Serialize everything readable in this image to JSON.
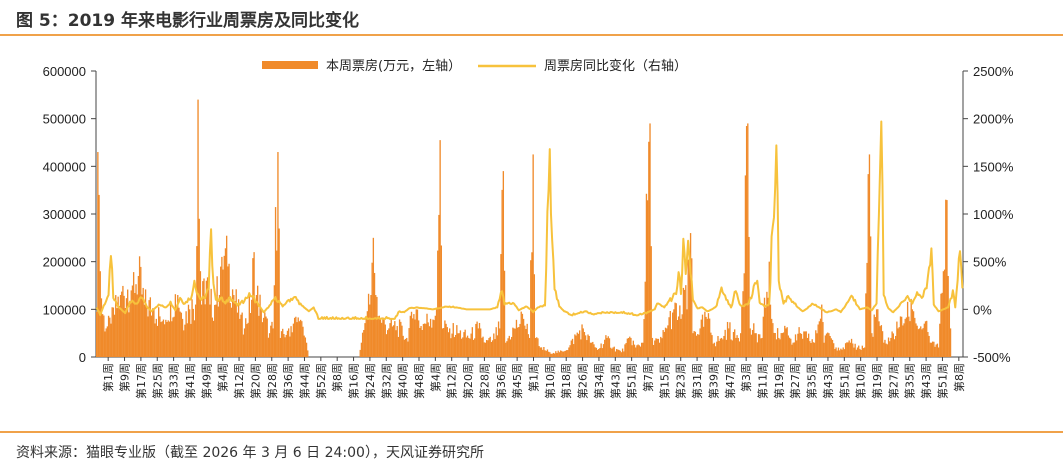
{
  "header": {
    "title": "图 5：2019 年来电影行业周票房及同比变化"
  },
  "footer": {
    "source": "资料来源：猫眼专业版（截至 2026 年 3 月 6 日 24:00），天风证券研究所"
  },
  "colors": {
    "bar": "#f08a2a",
    "line": "#f7c23c",
    "rule": "#f0a24a",
    "axis": "#444444"
  },
  "chart_data": {
    "type": "bar",
    "legend_position": "top",
    "y_left": {
      "min": 0,
      "max": 600000,
      "ticks": [
        "0",
        "100000",
        "200000",
        "300000",
        "400000",
        "500000",
        "600000"
      ]
    },
    "y_right": {
      "min": -500,
      "max": 2500,
      "ticks": [
        "-500%",
        "0%",
        "500%",
        "1000%",
        "1500%",
        "2000%",
        "2500%"
      ]
    },
    "x_tick_labels": [
      "第1周",
      "第9周",
      "第17周",
      "第25周",
      "第33周",
      "第41周",
      "第49周",
      "第4周",
      "第12周",
      "第20周",
      "第28周",
      "第36周",
      "第44周",
      "第52周",
      "第8周",
      "第16周",
      "第24周",
      "第32周",
      "第40周",
      "第48周",
      "第4周",
      "第12周",
      "第20周",
      "第28周",
      "第36周",
      "第45周",
      "第1周",
      "第10周",
      "第18周",
      "第26周",
      "第34周",
      "第43周",
      "第51周",
      "第7周",
      "第15周",
      "第23周",
      "第31周",
      "第39周",
      "第47周",
      "第3周",
      "第11周",
      "第19周",
      "第27周",
      "第35周",
      "第43周",
      "第51周",
      "第10周",
      "第19周",
      "第27周",
      "第35周",
      "第43周",
      "第51周",
      "第8周"
    ],
    "series": [
      {
        "name": "本周票房(万元，左轴）",
        "type": "bar",
        "axis": "left",
        "keypoints": [
          [
            0,
            95000
          ],
          [
            1,
            430000
          ],
          [
            2,
            340000
          ],
          [
            3,
            180000
          ],
          [
            5,
            90000
          ],
          [
            8,
            60000
          ],
          [
            12,
            70000
          ],
          [
            20,
            130000
          ],
          [
            30,
            150000
          ],
          [
            35,
            170000
          ],
          [
            40,
            110000
          ],
          [
            48,
            100000
          ],
          [
            55,
            75000
          ],
          [
            62,
            110000
          ],
          [
            68,
            130000
          ],
          [
            72,
            80000
          ],
          [
            78,
            100000
          ],
          [
            83,
            110000
          ],
          [
            85,
            540000
          ],
          [
            86,
            290000
          ],
          [
            88,
            110000
          ],
          [
            92,
            160000
          ],
          [
            95,
            110000
          ],
          [
            100,
            110000
          ],
          [
            105,
            210000
          ],
          [
            110,
            190000
          ],
          [
            115,
            130000
          ],
          [
            120,
            80000
          ],
          [
            124,
            60000
          ],
          [
            130,
            120000
          ],
          [
            132,
            220000
          ],
          [
            134,
            130000
          ],
          [
            138,
            100000
          ],
          [
            145,
            50000
          ],
          [
            148,
            60000
          ],
          [
            152,
            430000
          ],
          [
            154,
            40000
          ],
          [
            160,
            55000
          ],
          [
            165,
            70000
          ],
          [
            170,
            75000
          ],
          [
            176,
            30000
          ],
          [
            178,
            0
          ],
          [
            220,
            0
          ],
          [
            222,
            30000
          ],
          [
            226,
            85000
          ],
          [
            230,
            130000
          ],
          [
            232,
            250000
          ],
          [
            234,
            130000
          ],
          [
            238,
            80000
          ],
          [
            245,
            60000
          ],
          [
            252,
            65000
          ],
          [
            260,
            40000
          ],
          [
            266,
            90000
          ],
          [
            268,
            100000
          ],
          [
            272,
            65000
          ],
          [
            280,
            80000
          ],
          [
            285,
            100000
          ],
          [
            288,
            455000
          ],
          [
            290,
            60000
          ],
          [
            296,
            60000
          ],
          [
            304,
            50000
          ],
          [
            312,
            40000
          ],
          [
            320,
            60000
          ],
          [
            326,
            30000
          ],
          [
            332,
            35000
          ],
          [
            338,
            60000
          ],
          [
            341,
            390000
          ],
          [
            343,
            30000
          ],
          [
            350,
            60000
          ],
          [
            358,
            80000
          ],
          [
            363,
            40000
          ],
          [
            366,
            425000
          ],
          [
            368,
            40000
          ],
          [
            372,
            20000
          ],
          [
            380,
            10000
          ],
          [
            388,
            10000
          ],
          [
            396,
            20000
          ],
          [
            402,
            45000
          ],
          [
            408,
            60000
          ],
          [
            414,
            30000
          ],
          [
            420,
            15000
          ],
          [
            428,
            40000
          ],
          [
            433,
            20000
          ],
          [
            440,
            10000
          ],
          [
            448,
            40000
          ],
          [
            452,
            20000
          ],
          [
            458,
            30000
          ],
          [
            464,
            490000
          ],
          [
            466,
            40000
          ],
          [
            472,
            30000
          ],
          [
            478,
            60000
          ],
          [
            484,
            100000
          ],
          [
            490,
            80000
          ],
          [
            492,
            145000
          ],
          [
            495,
            100000
          ],
          [
            498,
            260000
          ],
          [
            500,
            50000
          ],
          [
            506,
            60000
          ],
          [
            512,
            80000
          ],
          [
            518,
            30000
          ],
          [
            524,
            40000
          ],
          [
            530,
            60000
          ],
          [
            536,
            40000
          ],
          [
            540,
            50000
          ],
          [
            546,
            490000
          ],
          [
            548,
            60000
          ],
          [
            552,
            50000
          ],
          [
            558,
            40000
          ],
          [
            564,
            200000
          ],
          [
            566,
            80000
          ],
          [
            572,
            40000
          ],
          [
            578,
            60000
          ],
          [
            584,
            30000
          ],
          [
            590,
            50000
          ],
          [
            596,
            40000
          ],
          [
            602,
            30000
          ],
          [
            608,
            110000
          ],
          [
            610,
            30000
          ],
          [
            614,
            50000
          ],
          [
            620,
            20000
          ],
          [
            626,
            20000
          ],
          [
            632,
            30000
          ],
          [
            638,
            20000
          ],
          [
            644,
            20000
          ],
          [
            648,
            425000
          ],
          [
            650,
            50000
          ],
          [
            654,
            100000
          ],
          [
            660,
            30000
          ],
          [
            666,
            40000
          ],
          [
            672,
            60000
          ],
          [
            678,
            80000
          ],
          [
            684,
            100000
          ],
          [
            690,
            60000
          ],
          [
            694,
            70000
          ],
          [
            700,
            30000
          ],
          [
            706,
            20000
          ],
          [
            710,
            180000
          ],
          [
            712,
            330000
          ],
          [
            714,
            170000
          ],
          [
            716,
            60000
          ]
        ]
      },
      {
        "name": "周票房同比变化（右轴）",
        "type": "line",
        "axis": "right",
        "keypoints": [
          [
            0,
            20
          ],
          [
            3,
            -60
          ],
          [
            6,
            40
          ],
          [
            10,
            150
          ],
          [
            12,
            560
          ],
          [
            14,
            120
          ],
          [
            18,
            30
          ],
          [
            24,
            -40
          ],
          [
            28,
            80
          ],
          [
            34,
            60
          ],
          [
            38,
            120
          ],
          [
            42,
            30
          ],
          [
            46,
            -20
          ],
          [
            52,
            50
          ],
          [
            58,
            20
          ],
          [
            62,
            80
          ],
          [
            66,
            -10
          ],
          [
            70,
            120
          ],
          [
            74,
            60
          ],
          [
            80,
            150
          ],
          [
            82,
            300
          ],
          [
            86,
            130
          ],
          [
            88,
            100
          ],
          [
            90,
            120
          ],
          [
            94,
            210
          ],
          [
            96,
            840
          ],
          [
            98,
            270
          ],
          [
            100,
            100
          ],
          [
            104,
            120
          ],
          [
            108,
            60
          ],
          [
            112,
            130
          ],
          [
            118,
            40
          ],
          [
            124,
            90
          ],
          [
            128,
            170
          ],
          [
            134,
            80
          ],
          [
            140,
            -30
          ],
          [
            146,
            50
          ],
          [
            150,
            130
          ],
          [
            156,
            30
          ],
          [
            160,
            90
          ],
          [
            166,
            130
          ],
          [
            172,
            40
          ],
          [
            178,
            -20
          ],
          [
            182,
            20
          ],
          [
            186,
            -100
          ],
          [
            250,
            -100
          ],
          [
            254,
            -20
          ],
          [
            258,
            -30
          ],
          [
            262,
            10
          ],
          [
            268,
            20
          ],
          [
            276,
            10
          ],
          [
            282,
            0
          ],
          [
            290,
            20
          ],
          [
            296,
            30
          ],
          [
            302,
            20
          ],
          [
            310,
            0
          ],
          [
            330,
            0
          ],
          [
            336,
            20
          ],
          [
            340,
            190
          ],
          [
            342,
            50
          ],
          [
            346,
            70
          ],
          [
            350,
            60
          ],
          [
            354,
            -10
          ],
          [
            360,
            30
          ],
          [
            364,
            0
          ],
          [
            366,
            -30
          ],
          [
            370,
            20
          ],
          [
            376,
            40
          ],
          [
            380,
            1680
          ],
          [
            384,
            210
          ],
          [
            388,
            30
          ],
          [
            392,
            -20
          ],
          [
            398,
            -60
          ],
          [
            404,
            -40
          ],
          [
            410,
            -20
          ],
          [
            416,
            -50
          ],
          [
            422,
            -40
          ],
          [
            428,
            -30
          ],
          [
            434,
            -40
          ],
          [
            440,
            -30
          ],
          [
            446,
            -40
          ],
          [
            452,
            -60
          ],
          [
            458,
            -50
          ],
          [
            464,
            -20
          ],
          [
            468,
            0
          ],
          [
            470,
            60
          ],
          [
            476,
            20
          ],
          [
            480,
            90
          ],
          [
            486,
            160
          ],
          [
            488,
            390
          ],
          [
            490,
            160
          ],
          [
            492,
            740
          ],
          [
            494,
            370
          ],
          [
            496,
            720
          ],
          [
            498,
            380
          ],
          [
            500,
            100
          ],
          [
            504,
            10
          ],
          [
            508,
            20
          ],
          [
            512,
            -20
          ],
          [
            516,
            0
          ],
          [
            520,
            40
          ],
          [
            524,
            230
          ],
          [
            528,
            100
          ],
          [
            532,
            20
          ],
          [
            536,
            190
          ],
          [
            540,
            40
          ],
          [
            546,
            50
          ],
          [
            550,
            160
          ],
          [
            554,
            300
          ],
          [
            556,
            70
          ],
          [
            560,
            30
          ],
          [
            564,
            60
          ],
          [
            570,
            1720
          ],
          [
            572,
            300
          ],
          [
            576,
            60
          ],
          [
            580,
            140
          ],
          [
            584,
            80
          ],
          [
            588,
            20
          ],
          [
            592,
            -20
          ],
          [
            596,
            10
          ],
          [
            600,
            60
          ],
          [
            606,
            20
          ],
          [
            612,
            -30
          ],
          [
            616,
            -20
          ],
          [
            620,
            0
          ],
          [
            624,
            -30
          ],
          [
            628,
            40
          ],
          [
            634,
            130
          ],
          [
            640,
            0
          ],
          [
            646,
            20
          ],
          [
            650,
            -10
          ],
          [
            654,
            60
          ],
          [
            658,
            1970
          ],
          [
            660,
            150
          ],
          [
            664,
            10
          ],
          [
            668,
            -30
          ],
          [
            672,
            20
          ],
          [
            676,
            80
          ],
          [
            680,
            140
          ],
          [
            684,
            60
          ],
          [
            688,
            180
          ],
          [
            692,
            120
          ],
          [
            696,
            220
          ],
          [
            700,
            640
          ],
          [
            702,
            50
          ],
          [
            706,
            -20
          ],
          [
            710,
            0
          ],
          [
            714,
            20
          ],
          [
            718,
            200
          ],
          [
            720,
            20
          ],
          [
            724,
            610
          ],
          [
            726,
            220
          ]
        ]
      }
    ]
  }
}
